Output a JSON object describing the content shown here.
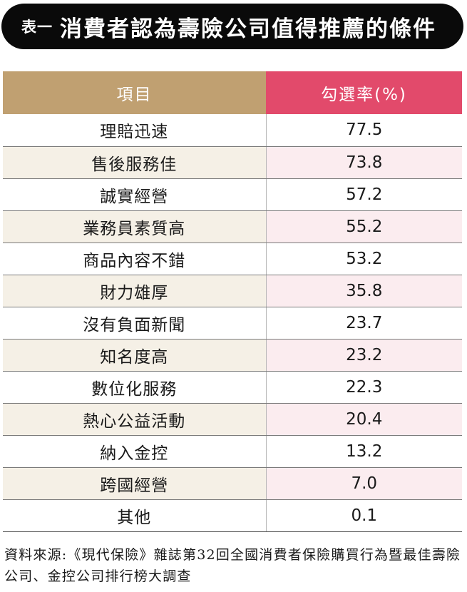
{
  "title": {
    "prefix": "表一",
    "text": "消費者認為壽險公司值得推薦的條件"
  },
  "colors": {
    "header_item_bg": "#c0a071",
    "header_rate_bg": "#e24a6b",
    "title_bar_bg": "#0a0a0a"
  },
  "chart_data": {
    "type": "table",
    "columns": [
      "項目",
      "勾選率(%)"
    ],
    "rows": [
      {
        "item": "理賠迅速",
        "value": "77.5"
      },
      {
        "item": "售後服務佳",
        "value": "73.8"
      },
      {
        "item": "誠實經營",
        "value": "57.2"
      },
      {
        "item": "業務員素質高",
        "value": "55.2"
      },
      {
        "item": "商品內容不錯",
        "value": "53.2"
      },
      {
        "item": "財力雄厚",
        "value": "35.8"
      },
      {
        "item": "沒有負面新聞",
        "value": "23.7"
      },
      {
        "item": "知名度高",
        "value": "23.2"
      },
      {
        "item": "數位化服務",
        "value": "22.3"
      },
      {
        "item": "熱心公益活動",
        "value": "20.4"
      },
      {
        "item": "納入金控",
        "value": "13.2"
      },
      {
        "item": "跨國經營",
        "value": "7.0"
      },
      {
        "item": "其他",
        "value": "0.1"
      }
    ]
  },
  "source": "資料來源:《現代保險》雜誌第32回全國消費者保險購買行為暨最佳壽險公司、金控公司排行榜大調查"
}
